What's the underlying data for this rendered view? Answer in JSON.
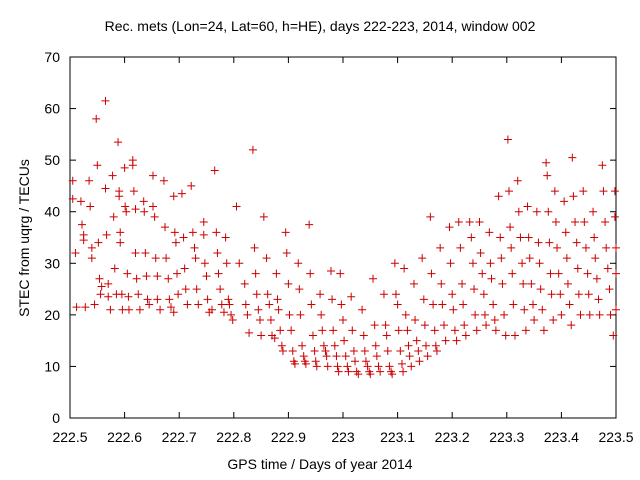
{
  "chart_data": {
    "type": "scatter",
    "title": "Rec. mets (Lon=24, Lat=60, h=HE), days 222-223, 2014, window 002",
    "xlabel": "GPS time / Days of year 2014",
    "ylabel": "STEC from uqrg / TECUs",
    "xlim": [
      222.5,
      223.5
    ],
    "ylim": [
      0,
      70
    ],
    "xticks": [
      "222.5",
      "222.6",
      "222.7",
      "222.8",
      "222.9",
      "223",
      "223.1",
      "223.2",
      "223.3",
      "223.4",
      "223.5"
    ],
    "yticks": [
      "0",
      "10",
      "20",
      "30",
      "40",
      "50",
      "60",
      "70"
    ],
    "grid": false,
    "marker": "plus",
    "color": "#cc0000",
    "points": [
      [
        222.505,
        46
      ],
      [
        222.505,
        42.5
      ],
      [
        222.51,
        32
      ],
      [
        222.512,
        21.5
      ],
      [
        222.52,
        42
      ],
      [
        222.522,
        37.5
      ],
      [
        222.525,
        35.5
      ],
      [
        222.525,
        34.5
      ],
      [
        222.528,
        21.5
      ],
      [
        222.535,
        46
      ],
      [
        222.537,
        41
      ],
      [
        222.54,
        33
      ],
      [
        222.54,
        31
      ],
      [
        222.545,
        22
      ],
      [
        222.548,
        58
      ],
      [
        222.55,
        49
      ],
      [
        222.552,
        34
      ],
      [
        222.554,
        27
      ],
      [
        222.556,
        24
      ],
      [
        222.558,
        25.5
      ],
      [
        222.565,
        61.5
      ],
      [
        222.565,
        44.5
      ],
      [
        222.567,
        35.5
      ],
      [
        222.57,
        26
      ],
      [
        222.57,
        23.5
      ],
      [
        222.574,
        21
      ],
      [
        222.578,
        47
      ],
      [
        222.58,
        39
      ],
      [
        222.582,
        29
      ],
      [
        222.585,
        24
      ],
      [
        222.588,
        53.5
      ],
      [
        222.59,
        44
      ],
      [
        222.59,
        43
      ],
      [
        222.592,
        36
      ],
      [
        222.592,
        34
      ],
      [
        222.595,
        24
      ],
      [
        222.596,
        21
      ],
      [
        222.6,
        48.5
      ],
      [
        222.601,
        41
      ],
      [
        222.603,
        40
      ],
      [
        222.605,
        28
      ],
      [
        222.607,
        23.5
      ],
      [
        222.608,
        21
      ],
      [
        222.615,
        50
      ],
      [
        222.615,
        49
      ],
      [
        222.617,
        44
      ],
      [
        222.62,
        40.5
      ],
      [
        222.62,
        32
      ],
      [
        222.622,
        27
      ],
      [
        222.625,
        24
      ],
      [
        222.628,
        21
      ],
      [
        222.635,
        42
      ],
      [
        222.636,
        40
      ],
      [
        222.638,
        32
      ],
      [
        222.64,
        27.5
      ],
      [
        222.642,
        23
      ],
      [
        222.645,
        22
      ],
      [
        222.652,
        47
      ],
      [
        222.652,
        41
      ],
      [
        222.655,
        39
      ],
      [
        222.657,
        31
      ],
      [
        222.66,
        27.5
      ],
      [
        222.66,
        23
      ],
      [
        222.665,
        21
      ],
      [
        222.672,
        46
      ],
      [
        222.674,
        37
      ],
      [
        222.676,
        31
      ],
      [
        222.68,
        27
      ],
      [
        222.682,
        23
      ],
      [
        222.685,
        21.5
      ],
      [
        222.69,
        20.5
      ],
      [
        222.69,
        43
      ],
      [
        222.692,
        36
      ],
      [
        222.694,
        34
      ],
      [
        222.696,
        28
      ],
      [
        222.698,
        24
      ],
      [
        222.705,
        43.5
      ],
      [
        222.708,
        35
      ],
      [
        222.71,
        29
      ],
      [
        222.712,
        25
      ],
      [
        222.715,
        22
      ],
      [
        222.722,
        45
      ],
      [
        222.725,
        36
      ],
      [
        222.728,
        33
      ],
      [
        222.73,
        31
      ],
      [
        222.732,
        25
      ],
      [
        222.735,
        22
      ],
      [
        222.745,
        38
      ],
      [
        222.745,
        35.5
      ],
      [
        222.747,
        30
      ],
      [
        222.75,
        27.5
      ],
      [
        222.752,
        23
      ],
      [
        222.755,
        20.5
      ],
      [
        222.76,
        21
      ],
      [
        222.765,
        48
      ],
      [
        222.768,
        36
      ],
      [
        222.77,
        32
      ],
      [
        222.772,
        28
      ],
      [
        222.775,
        25
      ],
      [
        222.778,
        22
      ],
      [
        222.782,
        20.5
      ],
      [
        222.785,
        35
      ],
      [
        222.787,
        30
      ],
      [
        222.79,
        23
      ],
      [
        222.792,
        22
      ],
      [
        222.795,
        20
      ],
      [
        222.798,
        19
      ],
      [
        222.805,
        41
      ],
      [
        222.81,
        30
      ],
      [
        222.82,
        26
      ],
      [
        222.822,
        22
      ],
      [
        222.825,
        20
      ],
      [
        222.828,
        16.5
      ],
      [
        222.835,
        52
      ],
      [
        222.838,
        33
      ],
      [
        222.84,
        28
      ],
      [
        222.842,
        24
      ],
      [
        222.845,
        21
      ],
      [
        222.848,
        19
      ],
      [
        222.85,
        16
      ],
      [
        222.855,
        39
      ],
      [
        222.86,
        31
      ],
      [
        222.862,
        24
      ],
      [
        222.865,
        22
      ],
      [
        222.868,
        19
      ],
      [
        222.87,
        16
      ],
      [
        222.875,
        15.5
      ],
      [
        222.878,
        28
      ],
      [
        222.88,
        23
      ],
      [
        222.882,
        21
      ],
      [
        222.885,
        17
      ],
      [
        222.888,
        14
      ],
      [
        222.89,
        13
      ],
      [
        222.895,
        36
      ],
      [
        222.897,
        32
      ],
      [
        222.9,
        26
      ],
      [
        222.902,
        20
      ],
      [
        222.905,
        17
      ],
      [
        222.908,
        13
      ],
      [
        222.91,
        11
      ],
      [
        222.912,
        10.5
      ],
      [
        222.918,
        30
      ],
      [
        222.92,
        25
      ],
      [
        222.922,
        20
      ],
      [
        222.925,
        14
      ],
      [
        222.928,
        12
      ],
      [
        222.93,
        11
      ],
      [
        222.932,
        10.5
      ],
      [
        222.938,
        37.5
      ],
      [
        222.94,
        28
      ],
      [
        222.942,
        22
      ],
      [
        222.945,
        16
      ],
      [
        222.948,
        13
      ],
      [
        222.95,
        11
      ],
      [
        222.952,
        10
      ],
      [
        222.958,
        24
      ],
      [
        222.96,
        20
      ],
      [
        222.962,
        17
      ],
      [
        222.965,
        14
      ],
      [
        222.968,
        13
      ],
      [
        222.97,
        12
      ],
      [
        222.972,
        10
      ],
      [
        222.978,
        28.5
      ],
      [
        222.98,
        23
      ],
      [
        222.982,
        17
      ],
      [
        222.985,
        14
      ],
      [
        222.988,
        12
      ],
      [
        222.99,
        10
      ],
      [
        222.992,
        9
      ],
      [
        222.995,
        28
      ],
      [
        222.997,
        22
      ],
      [
        223,
        19
      ],
      [
        223.002,
        15
      ],
      [
        223.005,
        12
      ],
      [
        223.008,
        10
      ],
      [
        223.01,
        9
      ],
      [
        223.015,
        23.5
      ],
      [
        223.017,
        17
      ],
      [
        223.02,
        13
      ],
      [
        223.022,
        11
      ],
      [
        223.025,
        9
      ],
      [
        223.028,
        8.5
      ],
      [
        223.035,
        21
      ],
      [
        223.038,
        16
      ],
      [
        223.04,
        13
      ],
      [
        223.042,
        11
      ],
      [
        223.045,
        10
      ],
      [
        223.048,
        9
      ],
      [
        223.05,
        8.5
      ],
      [
        223.055,
        27
      ],
      [
        223.058,
        18
      ],
      [
        223.06,
        14
      ],
      [
        223.062,
        12
      ],
      [
        223.065,
        10
      ],
      [
        223.068,
        9
      ],
      [
        223.075,
        24
      ],
      [
        223.078,
        18
      ],
      [
        223.08,
        16
      ],
      [
        223.082,
        13
      ],
      [
        223.085,
        10
      ],
      [
        223.088,
        9
      ],
      [
        223.09,
        8.5
      ],
      [
        223.095,
        30
      ],
      [
        223.097,
        24
      ],
      [
        223.1,
        22
      ],
      [
        223.102,
        17
      ],
      [
        223.105,
        13
      ],
      [
        223.108,
        10.5
      ],
      [
        223.11,
        9
      ],
      [
        223.112,
        29
      ],
      [
        223.115,
        20
      ],
      [
        223.118,
        17
      ],
      [
        223.12,
        14
      ],
      [
        223.122,
        12
      ],
      [
        223.125,
        10
      ],
      [
        223.13,
        26
      ],
      [
        223.132,
        19
      ],
      [
        223.135,
        15
      ],
      [
        223.138,
        13
      ],
      [
        223.14,
        11
      ],
      [
        223.145,
        31
      ],
      [
        223.148,
        23
      ],
      [
        223.15,
        18
      ],
      [
        223.152,
        14
      ],
      [
        223.155,
        12
      ],
      [
        223.16,
        39
      ],
      [
        223.162,
        28
      ],
      [
        223.165,
        22
      ],
      [
        223.168,
        17
      ],
      [
        223.17,
        14
      ],
      [
        223.172,
        13
      ],
      [
        223.178,
        33
      ],
      [
        223.18,
        26
      ],
      [
        223.182,
        22
      ],
      [
        223.185,
        18
      ],
      [
        223.188,
        15
      ],
      [
        223.195,
        37
      ],
      [
        223.197,
        30
      ],
      [
        223.2,
        24
      ],
      [
        223.202,
        21
      ],
      [
        223.205,
        17
      ],
      [
        223.208,
        15
      ],
      [
        223.212,
        38
      ],
      [
        223.215,
        33
      ],
      [
        223.218,
        26
      ],
      [
        223.22,
        22
      ],
      [
        223.222,
        18
      ],
      [
        223.225,
        16
      ],
      [
        223.232,
        38
      ],
      [
        223.235,
        35
      ],
      [
        223.238,
        30
      ],
      [
        223.24,
        25
      ],
      [
        223.242,
        20
      ],
      [
        223.245,
        17
      ],
      [
        223.25,
        38
      ],
      [
        223.252,
        32
      ],
      [
        223.255,
        28
      ],
      [
        223.258,
        24
      ],
      [
        223.26,
        20
      ],
      [
        223.262,
        18
      ],
      [
        223.268,
        36
      ],
      [
        223.27,
        30
      ],
      [
        223.272,
        27
      ],
      [
        223.275,
        22
      ],
      [
        223.278,
        19
      ],
      [
        223.28,
        17
      ],
      [
        223.285,
        43
      ],
      [
        223.288,
        35
      ],
      [
        223.29,
        31
      ],
      [
        223.292,
        26
      ],
      [
        223.295,
        20
      ],
      [
        223.298,
        16
      ],
      [
        223.302,
        54
      ],
      [
        223.304,
        44
      ],
      [
        223.306,
        37
      ],
      [
        223.308,
        33
      ],
      [
        223.31,
        28
      ],
      [
        223.312,
        22
      ],
      [
        223.315,
        16
      ],
      [
        223.32,
        46
      ],
      [
        223.322,
        40
      ],
      [
        223.325,
        35
      ],
      [
        223.328,
        30
      ],
      [
        223.33,
        26
      ],
      [
        223.332,
        21
      ],
      [
        223.335,
        17
      ],
      [
        223.338,
        41
      ],
      [
        223.34,
        35
      ],
      [
        223.342,
        31
      ],
      [
        223.345,
        26
      ],
      [
        223.348,
        22
      ],
      [
        223.35,
        19
      ],
      [
        223.355,
        40
      ],
      [
        223.358,
        34
      ],
      [
        223.36,
        30
      ],
      [
        223.362,
        25
      ],
      [
        223.365,
        21
      ],
      [
        223.368,
        17
      ],
      [
        223.372,
        49.5
      ],
      [
        223.374,
        47
      ],
      [
        223.376,
        40
      ],
      [
        223.378,
        34
      ],
      [
        223.38,
        28
      ],
      [
        223.382,
        24
      ],
      [
        223.385,
        19
      ],
      [
        223.388,
        44
      ],
      [
        223.39,
        38
      ],
      [
        223.392,
        33
      ],
      [
        223.395,
        28
      ],
      [
        223.398,
        24
      ],
      [
        223.4,
        20
      ],
      [
        223.405,
        42
      ],
      [
        223.408,
        36
      ],
      [
        223.41,
        31
      ],
      [
        223.412,
        26
      ],
      [
        223.415,
        22
      ],
      [
        223.418,
        18
      ],
      [
        223.42,
        50.5
      ],
      [
        223.422,
        43
      ],
      [
        223.425,
        38
      ],
      [
        223.428,
        34
      ],
      [
        223.43,
        29
      ],
      [
        223.432,
        24
      ],
      [
        223.435,
        20
      ],
      [
        223.44,
        44
      ],
      [
        223.442,
        38
      ],
      [
        223.445,
        33
      ],
      [
        223.448,
        28
      ],
      [
        223.45,
        24
      ],
      [
        223.452,
        20
      ],
      [
        223.458,
        40
      ],
      [
        223.46,
        35
      ],
      [
        223.462,
        31
      ],
      [
        223.465,
        27
      ],
      [
        223.468,
        23
      ],
      [
        223.47,
        20
      ],
      [
        223.475,
        49
      ],
      [
        223.477,
        44
      ],
      [
        223.48,
        38
      ],
      [
        223.482,
        33
      ],
      [
        223.485,
        29
      ],
      [
        223.488,
        25
      ],
      [
        223.49,
        20
      ],
      [
        223.495,
        16
      ],
      [
        223.498,
        44
      ],
      [
        223.498,
        39
      ],
      [
        223.5,
        33
      ],
      [
        223.5,
        28
      ],
      [
        223.5,
        21
      ]
    ]
  }
}
